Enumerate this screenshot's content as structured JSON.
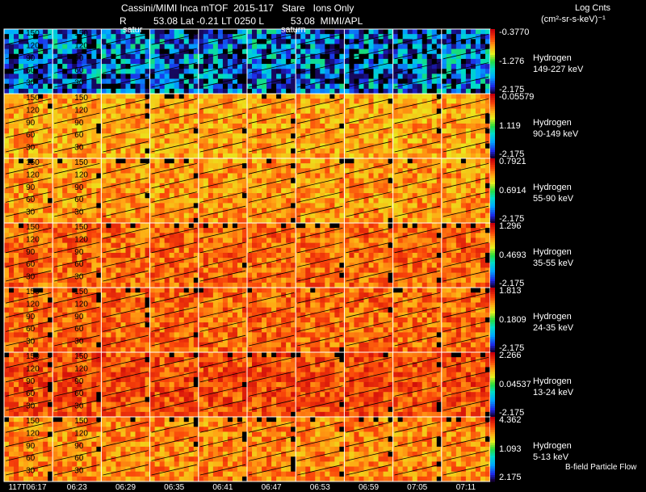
{
  "header": {
    "title": "Cassini/MIMI Inca mTOF  2015-117   Stare   Ions Only",
    "subtitle": "R          53.08 Lat -0.21 LT 0250 L          53.08  MIMI/APL",
    "units_line1": "Log Cnts",
    "units_line2": "(cm²-sr-s-keV)⁻¹",
    "planet_label_1": "satur",
    "planet_label_2": "saturn",
    "footer": "B-field Particle Flow"
  },
  "chart_data": {
    "type": "heatmap",
    "title": "Cassini/MIMI Inca mTOF  2015-117   Stare   Ions Only",
    "x_time_ticks": [
      "117T06:17",
      "06:23",
      "06:29",
      "06:35",
      "06:41",
      "06:47",
      "06:53",
      "06:59",
      "07:05",
      "07:11"
    ],
    "pitch_angle_labels": [
      "150",
      "120",
      "90",
      "60",
      "30"
    ],
    "bands": [
      {
        "species": "Hydrogen",
        "energy": "149-227 keV",
        "cb_max": "-0.3770",
        "cb_mid": "-1.276",
        "cb_min": "-2.175",
        "level": 0.18
      },
      {
        "species": "Hydrogen",
        "energy": "90-149 keV",
        "cb_max": "-0.05579",
        "cb_mid": "1.119",
        "cb_min": "-2.175",
        "level": 0.74
      },
      {
        "species": "Hydrogen",
        "energy": "55-90 keV",
        "cb_max": "0.7921",
        "cb_mid": "0.6914",
        "cb_min": "-2.175",
        "level": 0.76
      },
      {
        "species": "Hydrogen",
        "energy": "35-55 keV",
        "cb_max": "1.296",
        "cb_mid": "0.4693",
        "cb_min": "-2.175",
        "level": 0.82
      },
      {
        "species": "Hydrogen",
        "energy": "24-35 keV",
        "cb_max": "1.813",
        "cb_mid": "0.1809",
        "cb_min": "-2.175",
        "level": 0.82
      },
      {
        "species": "Hydrogen",
        "energy": "13-24 keV",
        "cb_max": "2.266",
        "cb_mid": "0.04537",
        "cb_min": "-2.175",
        "level": 0.86
      },
      {
        "species": "Hydrogen",
        "energy": "5-13 keV",
        "cb_max": "4.362",
        "cb_mid": "1.093",
        "cb_min": "2.175",
        "level": 0.78
      }
    ]
  },
  "colors": {
    "background": "#000000",
    "grid": "#ffffff",
    "contour": "#000000"
  }
}
